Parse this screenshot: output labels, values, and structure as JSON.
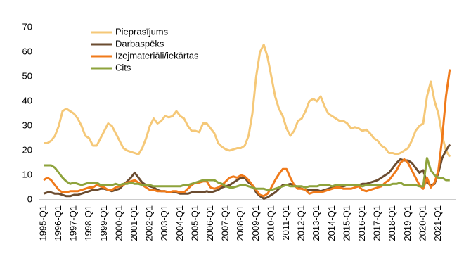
{
  "chart_data": {
    "type": "line",
    "categories": [
      "1995-Q1",
      null,
      null,
      null,
      "1996-Q1",
      null,
      null,
      null,
      "1997-Q1",
      null,
      null,
      null,
      "1998-Q1",
      null,
      null,
      null,
      "1999-Q1",
      null,
      null,
      null,
      "2000-Q1",
      null,
      null,
      null,
      "2001-Q1",
      null,
      null,
      null,
      "2002-Q1",
      null,
      null,
      null,
      "2003-Q1",
      null,
      null,
      null,
      "2004-Q1",
      null,
      null,
      null,
      "2005-Q1",
      null,
      null,
      null,
      "2006-Q1",
      null,
      null,
      null,
      "2007-Q1",
      null,
      null,
      null,
      "2008-Q1",
      null,
      null,
      null,
      "2009-Q1",
      null,
      null,
      null,
      "2010-Q1",
      null,
      null,
      null,
      "2011-Q1",
      null,
      null,
      null,
      "2012-Q1",
      null,
      null,
      null,
      "2013-Q1",
      null,
      null,
      null,
      "2014-Q1",
      null,
      null,
      null,
      "2015-Q1",
      null,
      null,
      null,
      "2016-Q1",
      null,
      null,
      null,
      "2017-Q1",
      null,
      null,
      null,
      "2018-Q1",
      null,
      null,
      null,
      "2019-Q1",
      null,
      null,
      null,
      "2020-Q1",
      null,
      null,
      null,
      "2021-Q1",
      null,
      null,
      null
    ],
    "series": [
      {
        "name": "Pieprasījums",
        "color": "#f5c878",
        "values": [
          23,
          23,
          24,
          26,
          30,
          36,
          37,
          36,
          35,
          33,
          30,
          26,
          25,
          22,
          22,
          25,
          28,
          31,
          30,
          27,
          24,
          21,
          20,
          19.5,
          19,
          18.5,
          21,
          25,
          30,
          33,
          31,
          32,
          34,
          33.5,
          34,
          36,
          34,
          33,
          30,
          28,
          28,
          27.5,
          31,
          31,
          29,
          27,
          23,
          21.5,
          20.5,
          20,
          20.5,
          21,
          21,
          22,
          26,
          35,
          50,
          60,
          63,
          58,
          50,
          42,
          37,
          34,
          29,
          26,
          28,
          32,
          33,
          36,
          40,
          41,
          40,
          42,
          38,
          35,
          34,
          33,
          32,
          32,
          31,
          29,
          29.5,
          29,
          28,
          28.5,
          27,
          25,
          24,
          22,
          21,
          19,
          19,
          18.5,
          19,
          20,
          21,
          24,
          28,
          30,
          31,
          42,
          48,
          40,
          35,
          26,
          20,
          17.5
        ]
      },
      {
        "name": "Darbaspēks",
        "color": "#6b4c30",
        "values": [
          2.5,
          3,
          3,
          2.5,
          2.5,
          2,
          1.5,
          1.5,
          2,
          2,
          2.5,
          3,
          3.5,
          4,
          4,
          4.5,
          4.5,
          4,
          3.5,
          4,
          4.5,
          6,
          7.5,
          9,
          11,
          9,
          7,
          6,
          5.5,
          5,
          4,
          3.5,
          3.5,
          3,
          3,
          3,
          2.5,
          2.5,
          2.5,
          3,
          3,
          3,
          3,
          3.5,
          3,
          3.5,
          4,
          5,
          5.5,
          6,
          7,
          8,
          9,
          9,
          7,
          6,
          3,
          1.5,
          0.5,
          1,
          2,
          3,
          4.5,
          6,
          6,
          6.5,
          6,
          5,
          4.5,
          4,
          4,
          4,
          4,
          3.5,
          4,
          4.5,
          5,
          5,
          5.5,
          5.5,
          6,
          6,
          6,
          6,
          6.5,
          6.5,
          7,
          7.5,
          8,
          9,
          10,
          11,
          13,
          15,
          16.5,
          16,
          16,
          15,
          13,
          11,
          12,
          7,
          6,
          6.5,
          11,
          17,
          20,
          22.5
        ]
      },
      {
        "name": "Izejmateriāli/iekārtas",
        "color": "#f07a1a",
        "values": [
          8,
          9,
          8,
          6,
          4,
          3,
          3,
          3.5,
          3.5,
          3.5,
          4,
          4.5,
          5,
          5,
          6,
          5.5,
          5,
          4,
          4,
          5,
          5.5,
          6,
          7,
          7.5,
          8,
          7,
          6,
          5,
          4,
          4,
          3.5,
          3.5,
          3.5,
          3,
          3.5,
          3.5,
          3,
          3,
          4.5,
          6,
          7,
          7,
          7.5,
          7.5,
          5,
          4.5,
          5,
          6,
          7.5,
          9,
          9.5,
          9,
          10,
          9.5,
          8,
          6,
          4,
          2,
          1.5,
          2.5,
          5,
          8,
          10.5,
          12.5,
          12.5,
          9,
          6,
          4.5,
          4.5,
          4,
          2.5,
          3,
          3,
          3,
          3.5,
          4,
          4.5,
          5,
          5,
          4.5,
          4.5,
          4.5,
          5,
          5.5,
          4,
          3.5,
          4,
          4.5,
          5,
          5.5,
          7,
          8,
          10,
          12,
          15,
          16.5,
          15,
          12,
          9,
          6,
          4.5,
          9,
          5,
          7,
          12,
          25,
          42,
          53
        ]
      },
      {
        "name": "Cits",
        "color": "#8ea33c",
        "values": [
          14,
          14,
          14,
          13,
          11,
          9,
          7.5,
          6.5,
          7,
          6.5,
          6,
          6.5,
          7,
          7,
          7,
          6,
          6,
          6,
          6,
          6.5,
          6,
          6.5,
          6.5,
          7,
          6.5,
          6.5,
          6,
          6,
          6,
          5.5,
          5.5,
          5.5,
          5.5,
          5.5,
          5.5,
          5.5,
          5.5,
          6,
          6,
          6.5,
          7,
          7.5,
          8,
          8,
          8,
          8,
          7,
          6.5,
          5.5,
          5,
          5,
          5.5,
          6,
          6,
          5.5,
          5,
          4.5,
          4.5,
          4.5,
          4,
          4,
          4.5,
          5,
          5.5,
          6,
          5.5,
          5.5,
          5.5,
          5.5,
          5,
          5.5,
          5.5,
          5.5,
          6,
          6,
          6,
          5.5,
          6,
          6,
          6,
          6,
          6,
          6,
          6,
          5.5,
          6,
          6,
          6,
          6,
          6,
          6,
          6,
          6.5,
          6.5,
          7,
          6,
          6,
          6,
          6,
          5.5,
          5.5,
          17,
          12,
          10,
          9,
          9,
          8,
          8
        ]
      }
    ],
    "ylim": [
      0,
      70
    ],
    "yticks": [
      0,
      10,
      20,
      30,
      40,
      50,
      60,
      70
    ],
    "grid": false,
    "legend": "upper left"
  }
}
